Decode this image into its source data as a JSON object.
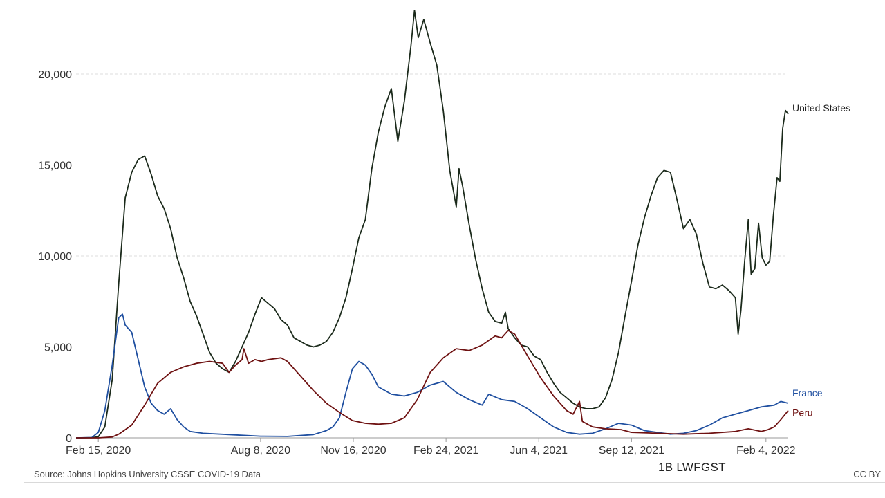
{
  "chart_data": {
    "type": "line",
    "title": "",
    "xlabel": "",
    "ylabel": "",
    "x_domain": [
      "2020-01-22",
      "2022-02-28"
    ],
    "ylim": [
      0,
      23500
    ],
    "y_ticks": [
      0,
      5000,
      10000,
      15000,
      20000
    ],
    "y_tick_labels": [
      "0",
      "5,000",
      "10,000",
      "15,000",
      "20,000"
    ],
    "x_ticks": [
      "2020-02-15",
      "2020-08-08",
      "2020-11-16",
      "2021-02-24",
      "2021-06-04",
      "2021-09-12",
      "2022-02-04"
    ],
    "x_tick_labels": [
      "Feb 15, 2020",
      "Aug 8, 2020",
      "Nov 16, 2020",
      "Feb 24, 2021",
      "Jun 4, 2021",
      "Sep 12, 2021",
      "Feb 4, 2022"
    ],
    "grid": "horizontal dashed",
    "legend": "labels at line ends",
    "series": [
      {
        "name": "United States",
        "color": "#1b2a1b",
        "points": [
          [
            "2020-01-22",
            0
          ],
          [
            "2020-02-08",
            10
          ],
          [
            "2020-02-15",
            60
          ],
          [
            "2020-02-22",
            600
          ],
          [
            "2020-03-01",
            3200
          ],
          [
            "2020-03-08",
            8500
          ],
          [
            "2020-03-15",
            13200
          ],
          [
            "2020-03-22",
            14600
          ],
          [
            "2020-03-29",
            15300
          ],
          [
            "2020-04-05",
            15500
          ],
          [
            "2020-04-12",
            14500
          ],
          [
            "2020-04-19",
            13300
          ],
          [
            "2020-04-26",
            12600
          ],
          [
            "2020-05-03",
            11500
          ],
          [
            "2020-05-10",
            9900
          ],
          [
            "2020-05-17",
            8800
          ],
          [
            "2020-05-24",
            7500
          ],
          [
            "2020-05-31",
            6700
          ],
          [
            "2020-06-07",
            5700
          ],
          [
            "2020-06-14",
            4700
          ],
          [
            "2020-06-21",
            4100
          ],
          [
            "2020-06-28",
            3800
          ],
          [
            "2020-07-05",
            3600
          ],
          [
            "2020-07-12",
            4200
          ],
          [
            "2020-07-19",
            5000
          ],
          [
            "2020-07-26",
            5800
          ],
          [
            "2020-08-02",
            6800
          ],
          [
            "2020-08-09",
            7700
          ],
          [
            "2020-08-16",
            7400
          ],
          [
            "2020-08-23",
            7100
          ],
          [
            "2020-08-30",
            6500
          ],
          [
            "2020-09-06",
            6200
          ],
          [
            "2020-09-13",
            5500
          ],
          [
            "2020-09-20",
            5300
          ],
          [
            "2020-09-27",
            5100
          ],
          [
            "2020-10-04",
            5000
          ],
          [
            "2020-10-11",
            5100
          ],
          [
            "2020-10-18",
            5300
          ],
          [
            "2020-10-25",
            5800
          ],
          [
            "2020-11-01",
            6600
          ],
          [
            "2020-11-08",
            7700
          ],
          [
            "2020-11-15",
            9300
          ],
          [
            "2020-11-22",
            11000
          ],
          [
            "2020-11-29",
            12000
          ],
          [
            "2020-12-06",
            14800
          ],
          [
            "2020-12-13",
            16800
          ],
          [
            "2020-12-20",
            18200
          ],
          [
            "2020-12-27",
            19200
          ],
          [
            "2021-01-03",
            16300
          ],
          [
            "2021-01-10",
            18500
          ],
          [
            "2021-01-17",
            21500
          ],
          [
            "2021-01-21",
            23500
          ],
          [
            "2021-01-25",
            22000
          ],
          [
            "2021-01-31",
            23000
          ],
          [
            "2021-02-07",
            21700
          ],
          [
            "2021-02-14",
            20500
          ],
          [
            "2021-02-21",
            18000
          ],
          [
            "2021-02-28",
            14700
          ],
          [
            "2021-03-07",
            12700
          ],
          [
            "2021-03-10",
            14800
          ],
          [
            "2021-03-14",
            13800
          ],
          [
            "2021-03-21",
            11700
          ],
          [
            "2021-03-28",
            9800
          ],
          [
            "2021-04-04",
            8200
          ],
          [
            "2021-04-11",
            6900
          ],
          [
            "2021-04-18",
            6400
          ],
          [
            "2021-04-25",
            6300
          ],
          [
            "2021-04-29",
            6900
          ],
          [
            "2021-05-02",
            6000
          ],
          [
            "2021-05-09",
            5500
          ],
          [
            "2021-05-16",
            5100
          ],
          [
            "2021-05-23",
            5000
          ],
          [
            "2021-05-30",
            4500
          ],
          [
            "2021-06-06",
            4300
          ],
          [
            "2021-06-13",
            3600
          ],
          [
            "2021-06-20",
            3000
          ],
          [
            "2021-06-27",
            2500
          ],
          [
            "2021-07-04",
            2200
          ],
          [
            "2021-07-11",
            1900
          ],
          [
            "2021-07-18",
            1700
          ],
          [
            "2021-07-25",
            1600
          ],
          [
            "2021-08-01",
            1600
          ],
          [
            "2021-08-08",
            1700
          ],
          [
            "2021-08-15",
            2200
          ],
          [
            "2021-08-22",
            3200
          ],
          [
            "2021-08-29",
            4700
          ],
          [
            "2021-09-05",
            6700
          ],
          [
            "2021-09-12",
            8600
          ],
          [
            "2021-09-19",
            10600
          ],
          [
            "2021-09-26",
            12100
          ],
          [
            "2021-10-03",
            13300
          ],
          [
            "2021-10-10",
            14300
          ],
          [
            "2021-10-17",
            14700
          ],
          [
            "2021-10-24",
            14600
          ],
          [
            "2021-10-31",
            13100
          ],
          [
            "2021-11-07",
            11500
          ],
          [
            "2021-11-14",
            12000
          ],
          [
            "2021-11-21",
            11200
          ],
          [
            "2021-11-28",
            9600
          ],
          [
            "2021-12-05",
            8300
          ],
          [
            "2021-12-12",
            8200
          ],
          [
            "2021-12-19",
            8400
          ],
          [
            "2021-12-26",
            8100
          ],
          [
            "2022-01-02",
            7700
          ],
          [
            "2022-01-05",
            5700
          ],
          [
            "2022-01-08",
            7000
          ],
          [
            "2022-01-12",
            9700
          ],
          [
            "2022-01-16",
            12000
          ],
          [
            "2022-01-19",
            9000
          ],
          [
            "2022-01-23",
            9300
          ],
          [
            "2022-01-27",
            11800
          ],
          [
            "2022-01-31",
            9900
          ],
          [
            "2022-02-04",
            9500
          ],
          [
            "2022-02-08",
            9700
          ],
          [
            "2022-02-12",
            12200
          ],
          [
            "2022-02-16",
            14300
          ],
          [
            "2022-02-19",
            14100
          ],
          [
            "2022-02-22",
            17000
          ],
          [
            "2022-02-25",
            18000
          ],
          [
            "2022-02-28",
            17800
          ]
        ]
      },
      {
        "name": "France",
        "color": "#1f4fa0",
        "points": [
          [
            "2020-01-22",
            0
          ],
          [
            "2020-02-08",
            20
          ],
          [
            "2020-02-15",
            300
          ],
          [
            "2020-02-22",
            1500
          ],
          [
            "2020-03-01",
            4000
          ],
          [
            "2020-03-08",
            6600
          ],
          [
            "2020-03-12",
            6800
          ],
          [
            "2020-03-15",
            6200
          ],
          [
            "2020-03-22",
            5800
          ],
          [
            "2020-03-29",
            4300
          ],
          [
            "2020-04-05",
            2800
          ],
          [
            "2020-04-12",
            1900
          ],
          [
            "2020-04-19",
            1500
          ],
          [
            "2020-04-26",
            1300
          ],
          [
            "2020-05-03",
            1600
          ],
          [
            "2020-05-10",
            1000
          ],
          [
            "2020-05-17",
            600
          ],
          [
            "2020-05-24",
            350
          ],
          [
            "2020-06-07",
            250
          ],
          [
            "2020-07-05",
            180
          ],
          [
            "2020-08-08",
            90
          ],
          [
            "2020-09-06",
            80
          ],
          [
            "2020-10-04",
            180
          ],
          [
            "2020-10-18",
            400
          ],
          [
            "2020-10-25",
            600
          ],
          [
            "2020-11-01",
            1100
          ],
          [
            "2020-11-08",
            2500
          ],
          [
            "2020-11-15",
            3800
          ],
          [
            "2020-11-22",
            4200
          ],
          [
            "2020-11-29",
            4000
          ],
          [
            "2020-12-06",
            3500
          ],
          [
            "2020-12-13",
            2800
          ],
          [
            "2020-12-20",
            2600
          ],
          [
            "2020-12-27",
            2400
          ],
          [
            "2021-01-10",
            2300
          ],
          [
            "2021-01-24",
            2500
          ],
          [
            "2021-02-07",
            2900
          ],
          [
            "2021-02-21",
            3100
          ],
          [
            "2021-03-07",
            2500
          ],
          [
            "2021-03-21",
            2100
          ],
          [
            "2021-04-04",
            1800
          ],
          [
            "2021-04-11",
            2400
          ],
          [
            "2021-04-25",
            2100
          ],
          [
            "2021-05-09",
            2000
          ],
          [
            "2021-05-23",
            1600
          ],
          [
            "2021-06-06",
            1100
          ],
          [
            "2021-06-20",
            600
          ],
          [
            "2021-07-04",
            300
          ],
          [
            "2021-07-18",
            200
          ],
          [
            "2021-08-01",
            250
          ],
          [
            "2021-08-15",
            500
          ],
          [
            "2021-08-29",
            800
          ],
          [
            "2021-09-12",
            700
          ],
          [
            "2021-09-26",
            400
          ],
          [
            "2021-10-10",
            300
          ],
          [
            "2021-10-24",
            200
          ],
          [
            "2021-11-07",
            250
          ],
          [
            "2021-11-21",
            400
          ],
          [
            "2021-12-05",
            700
          ],
          [
            "2021-12-19",
            1100
          ],
          [
            "2022-01-02",
            1300
          ],
          [
            "2022-01-16",
            1500
          ],
          [
            "2022-01-30",
            1700
          ],
          [
            "2022-02-13",
            1800
          ],
          [
            "2022-02-20",
            2000
          ],
          [
            "2022-02-28",
            1900
          ]
        ]
      },
      {
        "name": "Peru",
        "color": "#6e1111",
        "points": [
          [
            "2020-01-22",
            0
          ],
          [
            "2020-02-15",
            0
          ],
          [
            "2020-03-01",
            50
          ],
          [
            "2020-03-08",
            200
          ],
          [
            "2020-03-22",
            700
          ],
          [
            "2020-04-05",
            1800
          ],
          [
            "2020-04-19",
            3000
          ],
          [
            "2020-05-03",
            3600
          ],
          [
            "2020-05-17",
            3900
          ],
          [
            "2020-05-31",
            4100
          ],
          [
            "2020-06-14",
            4200
          ],
          [
            "2020-06-28",
            4100
          ],
          [
            "2020-07-05",
            3600
          ],
          [
            "2020-07-12",
            4000
          ],
          [
            "2020-07-19",
            4300
          ],
          [
            "2020-07-21",
            4900
          ],
          [
            "2020-07-26",
            4100
          ],
          [
            "2020-08-02",
            4300
          ],
          [
            "2020-08-09",
            4200
          ],
          [
            "2020-08-16",
            4300
          ],
          [
            "2020-08-30",
            4400
          ],
          [
            "2020-09-06",
            4200
          ],
          [
            "2020-09-20",
            3400
          ],
          [
            "2020-10-04",
            2600
          ],
          [
            "2020-10-18",
            1900
          ],
          [
            "2020-11-01",
            1400
          ],
          [
            "2020-11-15",
            950
          ],
          [
            "2020-11-29",
            800
          ],
          [
            "2020-12-13",
            750
          ],
          [
            "2020-12-27",
            800
          ],
          [
            "2021-01-10",
            1100
          ],
          [
            "2021-01-24",
            2100
          ],
          [
            "2021-02-07",
            3600
          ],
          [
            "2021-02-21",
            4400
          ],
          [
            "2021-03-07",
            4900
          ],
          [
            "2021-03-21",
            4800
          ],
          [
            "2021-04-04",
            5100
          ],
          [
            "2021-04-18",
            5600
          ],
          [
            "2021-04-25",
            5500
          ],
          [
            "2021-05-02",
            5900
          ],
          [
            "2021-05-09",
            5700
          ],
          [
            "2021-05-16",
            5100
          ],
          [
            "2021-05-23",
            4500
          ],
          [
            "2021-06-06",
            3300
          ],
          [
            "2021-06-20",
            2300
          ],
          [
            "2021-07-04",
            1500
          ],
          [
            "2021-07-11",
            1300
          ],
          [
            "2021-07-18",
            2000
          ],
          [
            "2021-07-21",
            900
          ],
          [
            "2021-08-01",
            600
          ],
          [
            "2021-08-15",
            500
          ],
          [
            "2021-09-01",
            450
          ],
          [
            "2021-09-12",
            300
          ],
          [
            "2021-10-10",
            250
          ],
          [
            "2021-11-07",
            200
          ],
          [
            "2021-12-05",
            250
          ],
          [
            "2022-01-02",
            350
          ],
          [
            "2022-01-16",
            500
          ],
          [
            "2022-01-30",
            350
          ],
          [
            "2022-02-06",
            450
          ],
          [
            "2022-02-13",
            600
          ],
          [
            "2022-02-20",
            1000
          ],
          [
            "2022-02-28",
            1500
          ]
        ]
      }
    ]
  },
  "footer": {
    "source": "Source: Johns Hopkins University CSSE COVID-19 Data",
    "license": "CC BY",
    "watermark": "1B LWFGST"
  }
}
